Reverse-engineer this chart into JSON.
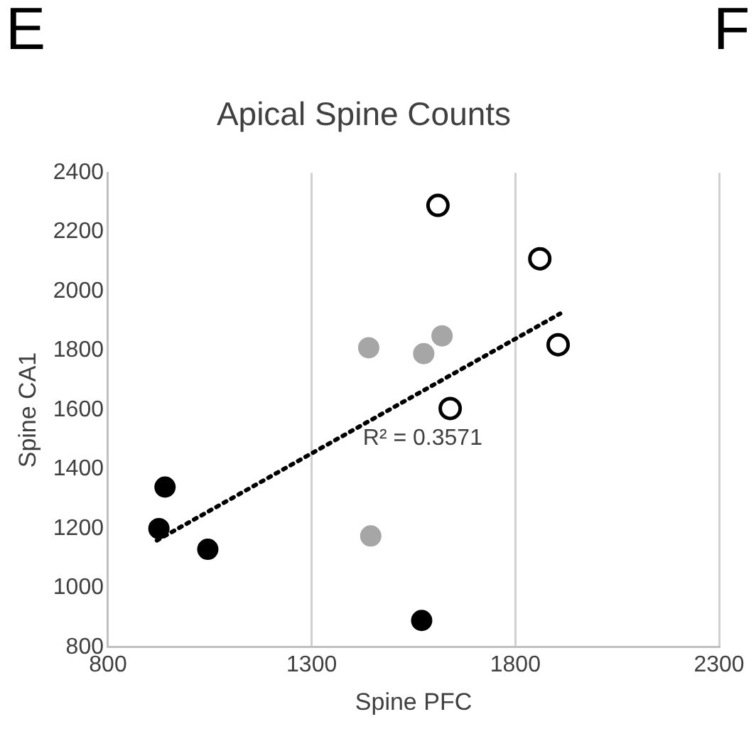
{
  "chart_data": {
    "type": "scatter",
    "title": "Apical Spine Counts",
    "xlabel": "Spine PFC",
    "ylabel": "Spine CA1",
    "annotations": [
      "E",
      "F",
      "R² = 0.3571"
    ],
    "series": [
      {
        "color": "#000000",
        "x": [
          940,
          925,
          1045,
          1570
        ],
        "values": [
          1340,
          1200,
          1130,
          890
        ]
      },
      {
        "color": "#a6a6a6",
        "x": [
          1445,
          1440,
          1575,
          1620
        ],
        "values": [
          1175,
          1810,
          1790,
          1850
        ]
      },
      {
        "color": "#ffffff",
        "x": [
          1610,
          1860,
          1905,
          1640
        ],
        "values": [
          2290,
          2110,
          1820,
          1605
        ]
      },
      {
        "type": "line",
        "color": "#000000",
        "line_style": "dotted",
        "marker": "none",
        "x": [
          920,
          1910
        ],
        "values": [
          1160,
          1925
        ]
      }
    ],
    "marker": "circle",
    "xlim": [
      800,
      2300
    ],
    "xticks": [
      800,
      1300,
      1800,
      2300
    ],
    "ylim": [
      800,
      2400
    ],
    "yticks": [
      800,
      1000,
      1200,
      1400,
      1600,
      1800,
      2000,
      2200,
      2400
    ],
    "grid": "x",
    "legend": false
  }
}
